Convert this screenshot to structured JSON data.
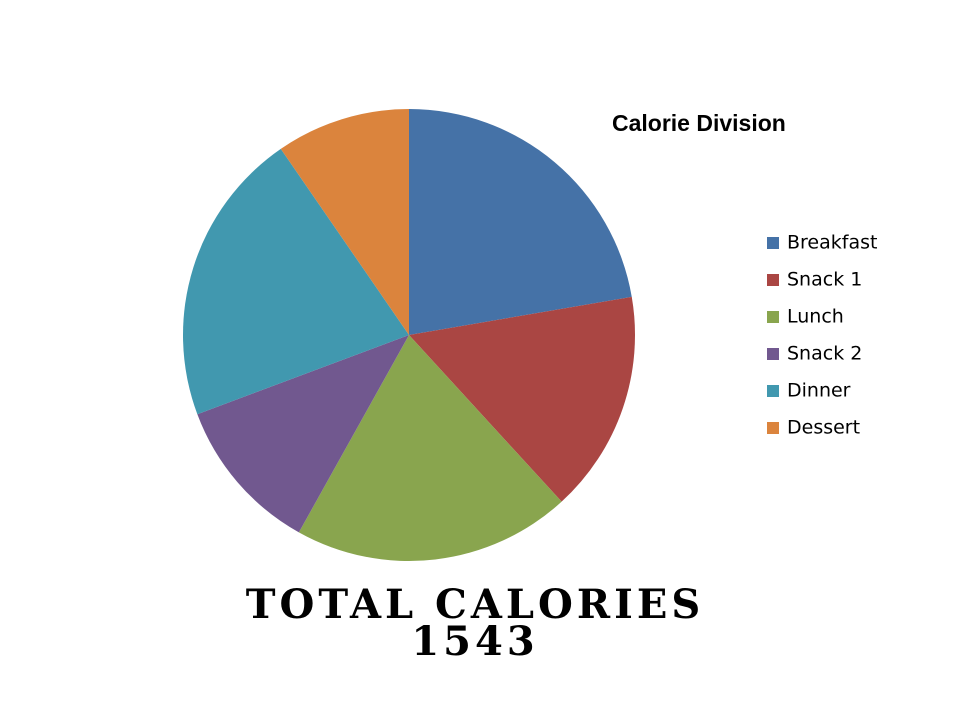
{
  "chart_data": {
    "type": "pie",
    "title": "Calorie Division",
    "categories": [
      "Breakfast",
      "Snack 1",
      "Lunch",
      "Snack 2",
      "Dinner",
      "Dessert"
    ],
    "values": [
      22.3,
      15.9,
      19.9,
      11.2,
      21.1,
      9.6
    ],
    "colors": [
      "#4572a7",
      "#aa4643",
      "#89a54e",
      "#71588f",
      "#4198af",
      "#db843d"
    ],
    "legend": "right",
    "total_label": "TOTAL CALORIES",
    "total_value": 1543
  }
}
